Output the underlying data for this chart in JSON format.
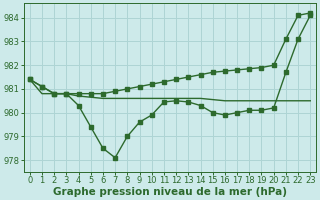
{
  "line_zigzag": [
    981.4,
    981.1,
    980.8,
    980.8,
    980.3,
    979.4,
    978.5,
    978.1,
    979.0,
    979.6,
    979.9,
    980.45,
    980.5,
    980.45,
    980.3,
    980.0,
    979.9,
    980.0,
    980.1,
    980.1,
    980.2,
    981.7,
    983.1,
    984.1
  ],
  "line_rising": [
    981.4,
    981.1,
    980.8,
    980.8,
    980.8,
    980.8,
    980.8,
    980.9,
    981.0,
    981.1,
    981.2,
    981.3,
    981.4,
    981.5,
    981.6,
    981.7,
    981.75,
    981.8,
    981.85,
    981.9,
    982.0,
    983.1,
    984.1,
    984.2
  ],
  "line_flat": [
    981.4,
    980.8,
    980.8,
    980.8,
    980.7,
    980.65,
    980.6,
    980.6,
    980.6,
    980.6,
    980.6,
    980.6,
    980.6,
    980.6,
    980.6,
    980.55,
    980.5,
    980.5,
    980.5,
    980.5,
    980.5,
    980.5,
    980.5,
    980.5
  ],
  "line_color": "#2d6a2d",
  "bg_color": "#cdeaea",
  "grid_color": "#aed4d4",
  "xlabel": "Graphe pression niveau de la mer (hPa)",
  "ylim": [
    977.5,
    984.6
  ],
  "xlim": [
    -0.5,
    23.5
  ],
  "xticks": [
    0,
    1,
    2,
    3,
    4,
    5,
    6,
    7,
    8,
    9,
    10,
    11,
    12,
    13,
    14,
    15,
    16,
    17,
    18,
    19,
    20,
    21,
    22,
    23
  ],
  "yticks": [
    978,
    979,
    980,
    981,
    982,
    983,
    984
  ],
  "tick_fontsize": 6.0,
  "xlabel_fontsize": 7.5,
  "marker_size": 2.2,
  "line_width": 1.0
}
